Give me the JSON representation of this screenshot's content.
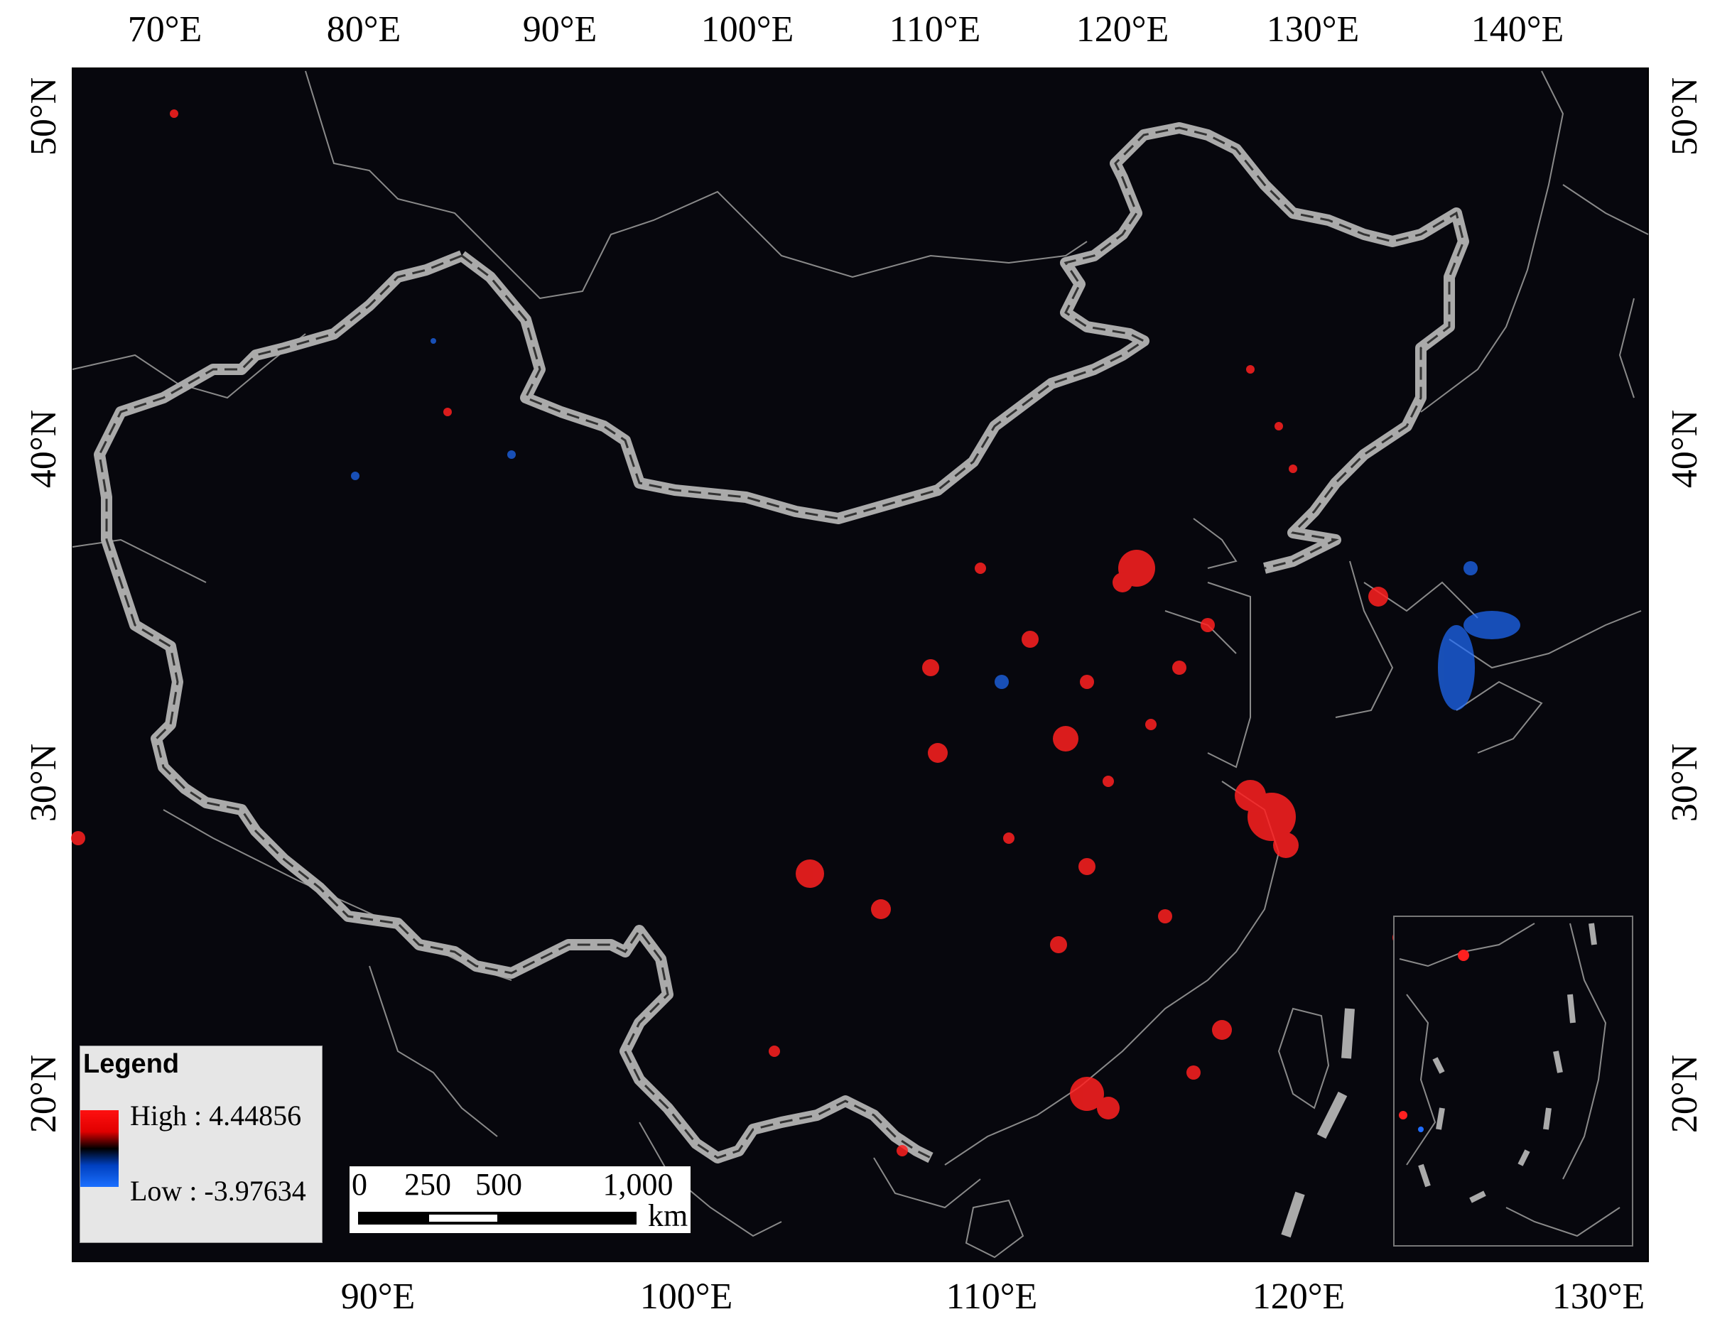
{
  "map": {
    "top_axis_labels": [
      "70°E",
      "80°E",
      "90°E",
      "100°E",
      "110°E",
      "120°E",
      "130°E",
      "140°E"
    ],
    "bottom_axis_labels": [
      "90°E",
      "100°E",
      "110°E",
      "120°E",
      "130°E"
    ],
    "left_axis_labels": [
      "50°N",
      "40°N",
      "30°N",
      "20°N"
    ],
    "right_axis_labels": [
      "50°N",
      "40°N",
      "30°N",
      "20°N"
    ],
    "background_color": "#07070d",
    "boundary_color": "#bdbdbd",
    "high_color": "#ff2020",
    "low_color": "#1f6dff"
  },
  "legend": {
    "title": "Legend",
    "high_label": "High : 4.44856",
    "low_label": "Low : -3.97634"
  },
  "scalebar": {
    "ticks": [
      "0",
      "250",
      "500",
      "1,000"
    ],
    "unit": "km"
  }
}
